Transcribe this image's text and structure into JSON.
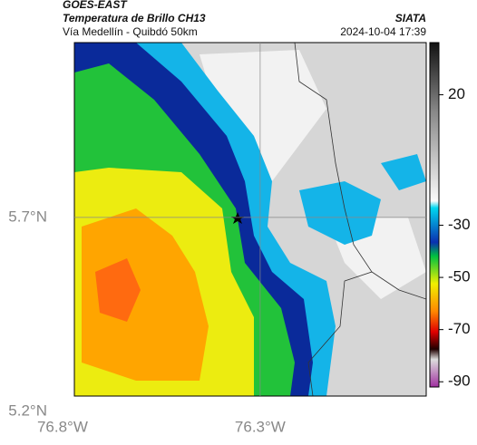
{
  "header": {
    "source": "GOES-EAST",
    "product": "Temperatura de Brillo CH13",
    "region": "Vía Medellín - Quibdó 50km",
    "brand": "SIATA",
    "timestamp": "2024-10-04 17:39"
  },
  "map": {
    "xlim": [
      -76.77,
      -75.88
    ],
    "ylim": [
      5.24,
      6.15
    ],
    "xticks": [
      {
        "value": -76.8,
        "label": "76.8°W"
      },
      {
        "value": -76.3,
        "label": "76.3°W"
      }
    ],
    "yticks": [
      {
        "value": 5.7,
        "label": "5.7°N"
      },
      {
        "value": 5.2,
        "label": "5.2°N"
      }
    ],
    "grid": true
  },
  "colorbar": {
    "clim": [
      40,
      -92
    ],
    "ticks": [
      20,
      -30,
      -50,
      -70,
      -90
    ]
  }
}
